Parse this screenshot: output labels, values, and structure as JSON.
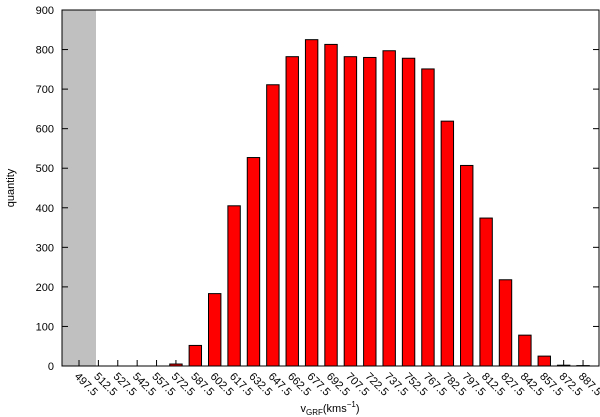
{
  "chart_data": {
    "type": "bar",
    "ylabel": "quantity",
    "xlabel": {
      "main": "v",
      "sub": "GRF",
      "unit": "(kms",
      "sup": "−1",
      "close": ")"
    },
    "categories": [
      "497.5",
      "512.5",
      "527.5",
      "542.5",
      "557.5",
      "572.5",
      "587.5",
      "602.5",
      "617.5",
      "632.5",
      "647.5",
      "662.5",
      "677.5",
      "692.5",
      "707.5",
      "722.5",
      "737.5",
      "752.5",
      "767.5",
      "782.5",
      "797.5",
      "812.5",
      "827.5",
      "842.5",
      "857.5",
      "872.5",
      "887.5"
    ],
    "values": [
      0,
      0,
      0,
      0,
      0,
      5,
      52,
      183,
      405,
      527,
      711,
      782,
      825,
      813,
      782,
      780,
      797,
      778,
      751,
      619,
      507,
      374,
      218,
      78,
      25,
      2,
      1
    ],
    "color": "#ff0000",
    "ylim": [
      0,
      900
    ],
    "yticks": [
      0,
      100,
      200,
      300,
      400,
      500,
      600,
      700,
      800,
      900
    ]
  }
}
